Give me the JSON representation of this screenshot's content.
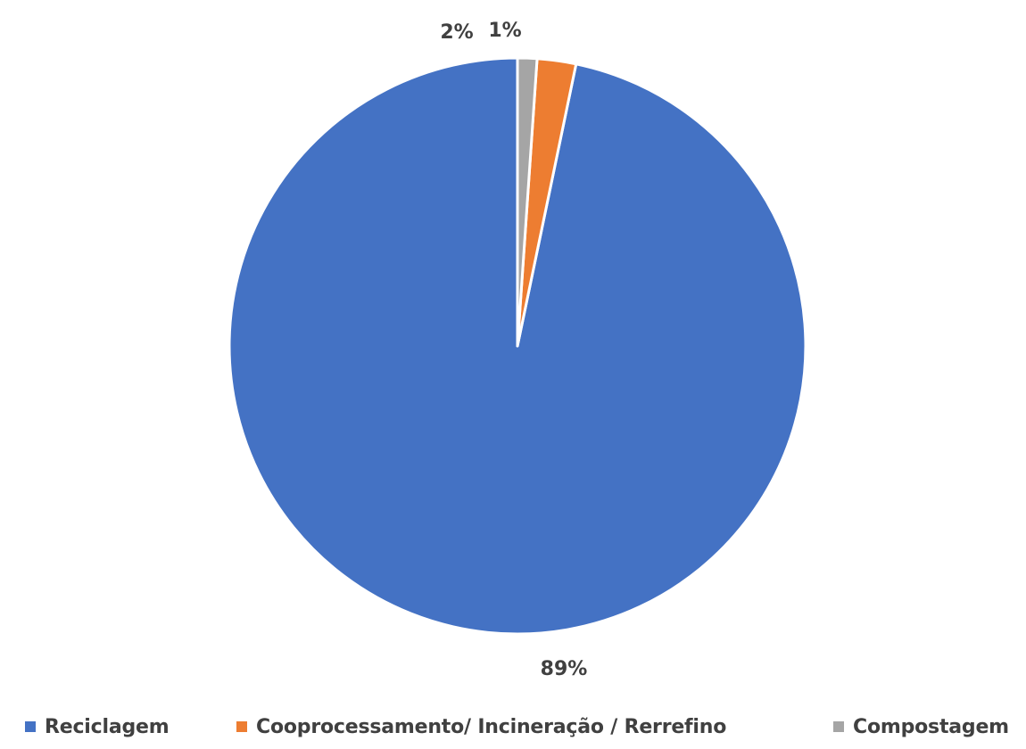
{
  "chart_data": {
    "type": "pie",
    "slices": [
      {
        "name": "Reciclagem",
        "value": 89,
        "label": "89%",
        "color": "#4472C4"
      },
      {
        "name": "Cooprocessamento/ Incineração / Rerrefino",
        "value": 2,
        "label": "2%",
        "color": "#ED7D31"
      },
      {
        "name": "Compostagem",
        "value": 1,
        "label": "1%",
        "color": "#A5A5A5"
      }
    ],
    "legend_position": "bottom",
    "start_angle": "12 o'clock",
    "direction": "counterclockwise"
  }
}
